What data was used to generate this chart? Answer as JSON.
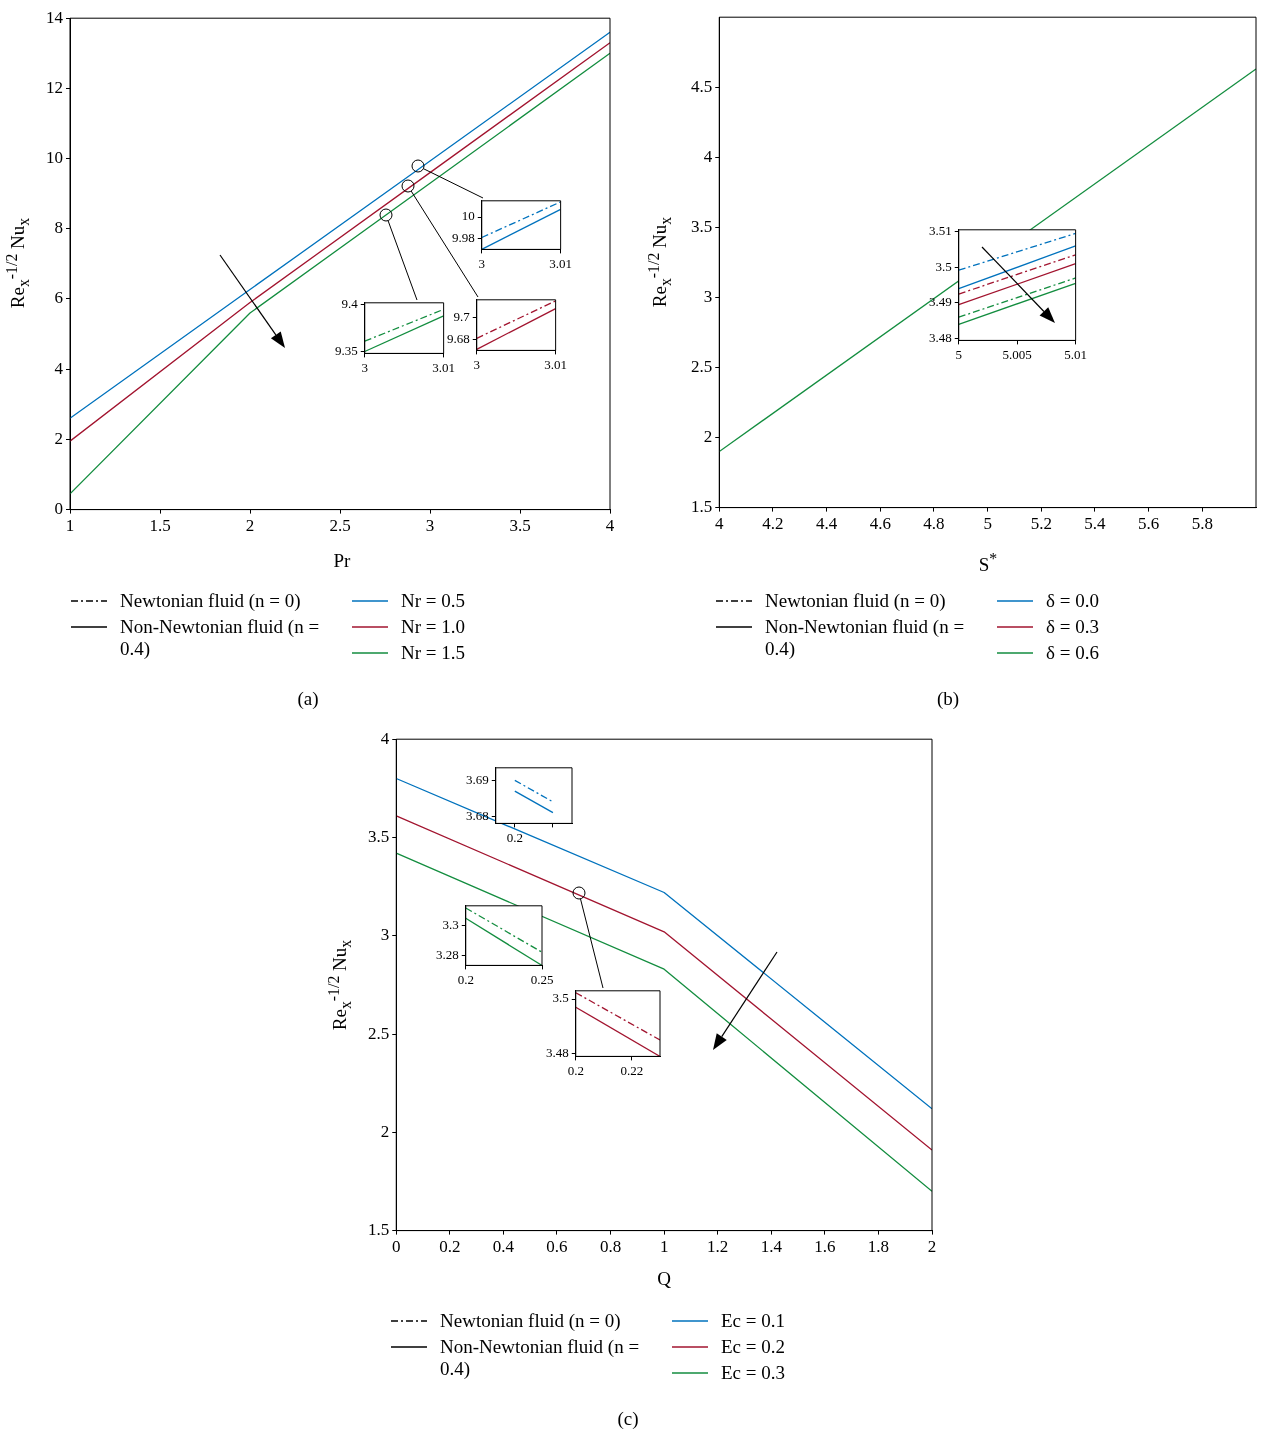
{
  "chart_data": [
    {
      "type": "line",
      "xlabel": "Pr",
      "ylabel": "Re$_{x}$$^{-1/2}$ Nu$_{x}$",
      "x": [
        1,
        2,
        3,
        4
      ],
      "xlim": [
        1,
        4
      ],
      "xticks": [
        1,
        1.5,
        2,
        2.5,
        3,
        3.5,
        4
      ],
      "ylim": [
        0,
        14
      ],
      "yticks": [
        0,
        2,
        4,
        6,
        8,
        10,
        12,
        14
      ],
      "grid": false,
      "legend": "bottom",
      "marker": "none",
      "annotations": [
        "(a)"
      ],
      "series": [
        {
          "name": "Newtonian fluid (n = 0)",
          "color": "#000000",
          "line_style": "dashed",
          "values": [
            null,
            null,
            null,
            null
          ]
        },
        {
          "name": "Non-Newtonian fluid (n = 0.4)",
          "color": "#000000",
          "line_style": "solid",
          "values": [
            null,
            null,
            null,
            null
          ]
        },
        {
          "name": "Nr = 0.5",
          "color": "#0072bd",
          "line_style": "solid",
          "values": [
            2.6,
            6.27,
            9.93,
            13.6
          ]
        },
        {
          "name": "Nr = 1.0",
          "color": "#a2142f",
          "line_style": "solid",
          "values": [
            1.95,
            5.9,
            9.6,
            13.3
          ]
        },
        {
          "name": "Nr = 1.5",
          "color": "#138d3f",
          "line_style": "solid",
          "values": [
            0.45,
            5.6,
            9.3,
            13.0
          ]
        }
      ]
    },
    {
      "type": "line",
      "x": [
        3,
        3.01
      ],
      "xlim": [
        3,
        3.01
      ],
      "xticks": [
        3,
        3.01
      ],
      "ylim": [
        9.97,
        10.015
      ],
      "yticks": [
        9.98,
        10
      ],
      "grid": false,
      "marker": "none",
      "series": [
        {
          "color": "#0072bd",
          "line_style": "solid",
          "values": [
            9.97,
            10.007
          ]
        },
        {
          "color": "#0072bd",
          "line_style": "dashed",
          "values": [
            9.981,
            10.014
          ]
        }
      ]
    },
    {
      "type": "line",
      "x": [
        3,
        3.01
      ],
      "xlim": [
        3,
        3.01
      ],
      "xticks": [
        3,
        3.01
      ],
      "ylim": [
        9.348,
        9.402
      ],
      "yticks": [
        9.35,
        9.4
      ],
      "grid": false,
      "marker": "none",
      "series": [
        {
          "color": "#138d3f",
          "line_style": "solid",
          "values": [
            9.35,
            9.388
          ]
        },
        {
          "color": "#138d3f",
          "line_style": "dashed",
          "values": [
            9.361,
            9.395
          ]
        }
      ]
    },
    {
      "type": "line",
      "x": [
        3,
        3.01
      ],
      "xlim": [
        3,
        3.01
      ],
      "xticks": [
        3,
        3.01
      ],
      "ylim": [
        9.67,
        9.716
      ],
      "yticks": [
        9.68,
        9.7
      ],
      "grid": false,
      "marker": "none",
      "series": [
        {
          "color": "#a2142f",
          "line_style": "solid",
          "values": [
            9.671,
            9.708
          ]
        },
        {
          "color": "#a2142f",
          "line_style": "dashed",
          "values": [
            9.681,
            9.715
          ]
        }
      ]
    },
    {
      "type": "line",
      "xlabel": "S$^{*}$",
      "ylabel": "Re$_{x}$$^{-1/2}$ Nu$_{x}$",
      "x": [
        4,
        6
      ],
      "xlim": [
        4,
        6
      ],
      "xticks": [
        4,
        4.2,
        4.4,
        4.6,
        4.8,
        5,
        5.2,
        5.4,
        5.6,
        5.8
      ],
      "ylim": [
        1.5,
        5
      ],
      "yticks": [
        1.5,
        2,
        2.5,
        3,
        3.5,
        4,
        4.5
      ],
      "grid": false,
      "legend": "bottom",
      "marker": "none",
      "annotations": [
        "(b)"
      ],
      "series": [
        {
          "name": "Newtonian fluid (n = 0)",
          "color": "#000000",
          "line_style": "dashed",
          "values": [
            null,
            null
          ]
        },
        {
          "name": "Non-Newtonian fluid (n = 0.4)",
          "color": "#000000",
          "line_style": "solid",
          "values": [
            null,
            null
          ]
        },
        {
          "name": "δ = 0.0",
          "color": "#0072bd",
          "line_style": "solid",
          "values": [
            null,
            null
          ]
        },
        {
          "name": "δ = 0.3",
          "color": "#a2142f",
          "line_style": "solid",
          "values": [
            null,
            null
          ]
        },
        {
          "name": "δ = 0.6",
          "color": "#138d3f",
          "line_style": "solid",
          "values": [
            1.9,
            4.63
          ]
        }
      ]
    },
    {
      "type": "line",
      "x": [
        5,
        5.01
      ],
      "xlim": [
        5,
        5.01
      ],
      "xticks": [
        5,
        5.005,
        5.01
      ],
      "ylim": [
        3.4795,
        3.5105
      ],
      "yticks": [
        3.48,
        3.49,
        3.5,
        3.51
      ],
      "grid": false,
      "marker": "none",
      "series": [
        {
          "color": "#0072bd",
          "line_style": "solid",
          "values": [
            3.494,
            3.506
          ]
        },
        {
          "color": "#a2142f",
          "line_style": "solid",
          "values": [
            3.4895,
            3.501
          ]
        },
        {
          "color": "#138d3f",
          "line_style": "solid",
          "values": [
            3.484,
            3.4955
          ]
        },
        {
          "color": "#0072bd",
          "line_style": "dashed",
          "values": [
            3.4992,
            3.5095
          ]
        },
        {
          "color": "#a2142f",
          "line_style": "dashed",
          "values": [
            3.4925,
            3.5035
          ]
        },
        {
          "color": "#138d3f",
          "line_style": "dashed",
          "values": [
            3.486,
            3.497
          ]
        }
      ]
    },
    {
      "type": "line",
      "xlabel": "Q",
      "ylabel": "Re$_{x}$$^{-1/2}$ Nu$_{x}$",
      "x": [
        0,
        1,
        2
      ],
      "xlim": [
        0,
        2
      ],
      "xticks": [
        0,
        0.2,
        0.4,
        0.6,
        0.8,
        1,
        1.2,
        1.4,
        1.6,
        1.8,
        2
      ],
      "ylim": [
        1.5,
        4
      ],
      "yticks": [
        1.5,
        2,
        2.5,
        3,
        3.5,
        4
      ],
      "grid": false,
      "legend": "bottom",
      "marker": "none",
      "annotations": [
        "(c)"
      ],
      "series": [
        {
          "name": "Newtonian fluid (n = 0)",
          "color": "#000000",
          "line_style": "dashed",
          "values": [
            null,
            null,
            null
          ]
        },
        {
          "name": "Non-Newtonian fluid (n = 0.4)",
          "color": "#000000",
          "line_style": "solid",
          "values": [
            null,
            null,
            null
          ]
        },
        {
          "name": "Ec = 0.1",
          "color": "#0072bd",
          "line_style": "solid",
          "values": [
            3.8,
            3.22,
            2.12
          ]
        },
        {
          "name": "Ec = 0.2",
          "color": "#a2142f",
          "line_style": "solid",
          "values": [
            3.61,
            3.02,
            1.91
          ]
        },
        {
          "name": "Ec = 0.3",
          "color": "#138d3f",
          "line_style": "solid",
          "values": [
            3.42,
            2.83,
            1.7
          ]
        }
      ]
    },
    {
      "type": "line",
      "categories": [
        "0.2",
        null
      ],
      "ylim": [
        3.678,
        3.6935
      ],
      "yticks": [
        3.68,
        3.69
      ],
      "grid": false,
      "marker": "none",
      "series": [
        {
          "color": "#0072bd",
          "line_style": "solid",
          "values": [
            3.687,
            3.681
          ]
        },
        {
          "color": "#0072bd",
          "line_style": "dashed",
          "values": [
            3.69,
            3.684
          ]
        }
      ]
    },
    {
      "type": "line",
      "x": [
        0.2,
        0.25
      ],
      "xlim": [
        0.2,
        0.25
      ],
      "xticks": [
        0.2,
        0.25
      ],
      "ylim": [
        3.273,
        3.3135
      ],
      "yticks": [
        3.28,
        3.3
      ],
      "grid": false,
      "marker": "none",
      "series": [
        {
          "color": "#138d3f",
          "line_style": "solid",
          "values": [
            3.305,
            3.273
          ]
        },
        {
          "color": "#138d3f",
          "line_style": "dashed",
          "values": [
            3.312,
            3.282
          ]
        }
      ]
    },
    {
      "type": "line",
      "x": [
        0.2,
        0.23
      ],
      "xlim": [
        0.2,
        0.23
      ],
      "xticks": [
        0.2,
        0.22
      ],
      "ylim": [
        3.479,
        3.503
      ],
      "yticks": [
        3.48,
        3.5
      ],
      "grid": false,
      "marker": "none",
      "series": [
        {
          "color": "#a2142f",
          "line_style": "solid",
          "values": [
            3.497,
            3.479
          ]
        },
        {
          "color": "#a2142f",
          "line_style": "dashed",
          "values": [
            3.5023,
            3.485
          ]
        }
      ]
    }
  ]
}
